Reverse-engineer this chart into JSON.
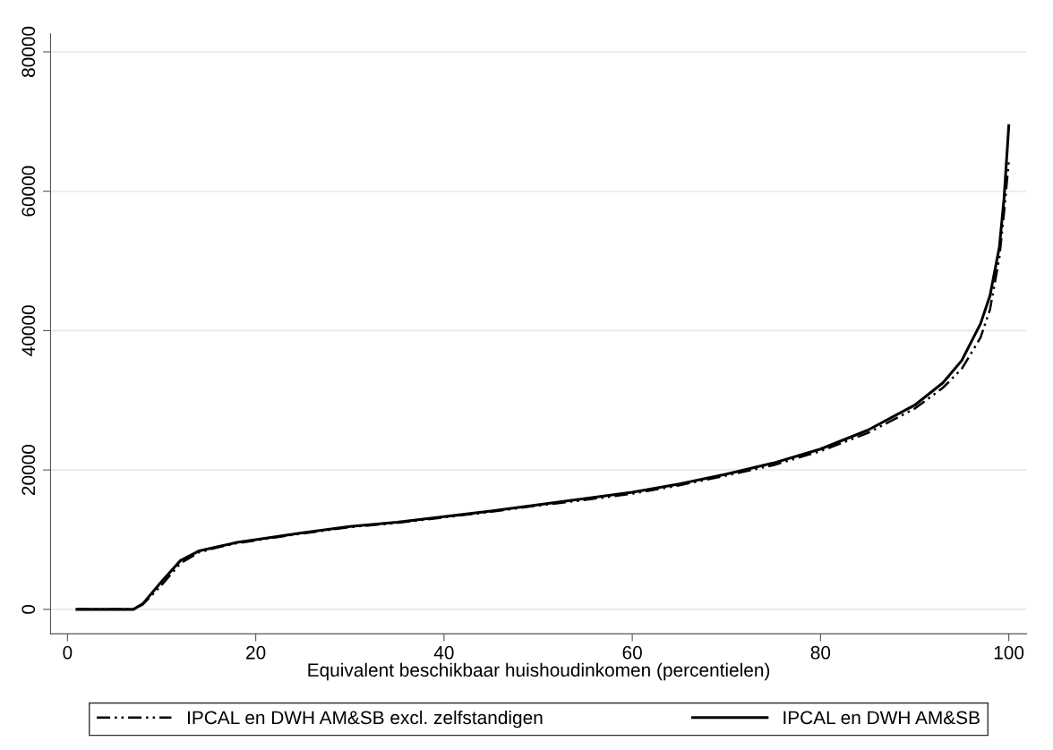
{
  "chart_data": {
    "type": "line",
    "xlabel": "Equivalent beschikbaar huishoudinkomen (percentielen)",
    "xlim": [
      -1.8,
      101.9
    ],
    "xticks": [
      0,
      20,
      40,
      60,
      80,
      100
    ],
    "ylim": [
      -3500,
      82600
    ],
    "yticks": [
      0,
      20000,
      40000,
      60000,
      80000
    ],
    "grid": "y",
    "legend": "bottom",
    "series": [
      {
        "name": "IPCAL en DWH AM&SB excl. zelfstandigen",
        "color": "#000000",
        "line_style": "dashdotdot",
        "x": [
          1,
          7,
          8,
          10,
          12,
          14,
          16,
          18,
          20,
          25,
          30,
          35,
          40,
          45,
          50,
          55,
          60,
          65,
          70,
          75,
          80,
          85,
          90,
          93,
          95,
          97,
          98,
          99,
          99.5,
          100
        ],
        "values": [
          0,
          0,
          700,
          3500,
          6600,
          8200,
          8900,
          9500,
          9900,
          10900,
          11800,
          12400,
          13200,
          14000,
          14900,
          15700,
          16600,
          17800,
          19200,
          20700,
          22700,
          25300,
          28800,
          31800,
          34500,
          39000,
          43000,
          50500,
          57000,
          64300
        ]
      },
      {
        "name": "IPCAL en DWH AM&SB",
        "color": "#000000",
        "line_style": "solid",
        "x": [
          1,
          7,
          8,
          10,
          12,
          14,
          16,
          18,
          20,
          25,
          30,
          35,
          40,
          45,
          50,
          55,
          60,
          65,
          70,
          75,
          80,
          85,
          90,
          93,
          95,
          97,
          98,
          99,
          99.5,
          100
        ],
        "values": [
          0,
          0,
          800,
          4000,
          7000,
          8400,
          9000,
          9600,
          10000,
          11000,
          11900,
          12500,
          13300,
          14100,
          15000,
          15900,
          16800,
          18000,
          19400,
          21000,
          23000,
          25700,
          29300,
          32500,
          35700,
          41000,
          45000,
          52000,
          59000,
          69400
        ]
      }
    ]
  }
}
